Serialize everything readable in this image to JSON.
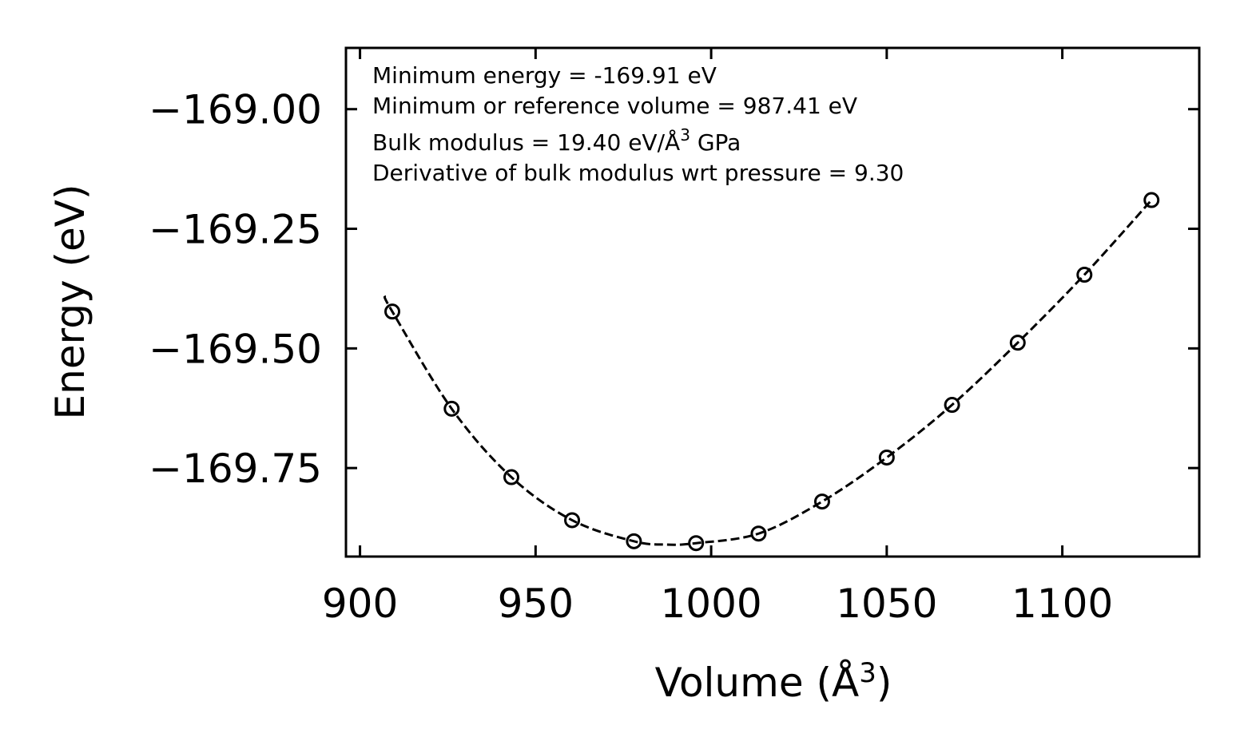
{
  "chart_data": {
    "type": "scatter",
    "xlabel": "Volume (Å",
    "xlabel_sup": "3",
    "xlabel_close": ")",
    "ylabel": "Energy (eV)",
    "xlim": [
      896,
      1139
    ],
    "ylim": [
      -169.935,
      -168.872
    ],
    "x_ticks": [
      900,
      950,
      1000,
      1050,
      1100
    ],
    "x_tick_labels": [
      "900",
      "950",
      "1000",
      "1050",
      "1100"
    ],
    "y_ticks": [
      -169.0,
      -169.25,
      -169.5,
      -169.75
    ],
    "y_tick_labels": [
      "−169.00",
      "−169.25",
      "−169.50",
      "−169.75"
    ],
    "annotations": {
      "line1": "Minimum energy = -169.91 eV",
      "line2": "Minimum or reference volume = 987.41 eV",
      "line3_pre": "Bulk modulus = 19.40 eV/Å",
      "line3_sup": "3",
      "line3_post": " GPa",
      "line4": "Derivative of bulk modulus wrt pressure = 9.30"
    },
    "series": [
      {
        "name": "data points",
        "marker": "open-circle",
        "x": [
          909.2,
          926.1,
          943.1,
          960.4,
          978.0,
          995.7,
          1013.5,
          1031.6,
          1050.0,
          1068.6,
          1087.3,
          1106.3,
          1125.4
        ],
        "y": [
          -169.423,
          -169.626,
          -169.769,
          -169.859,
          -169.903,
          -169.907,
          -169.887,
          -169.82,
          -169.728,
          -169.618,
          -169.488,
          -169.346,
          -169.19
        ]
      },
      {
        "name": "fit",
        "style": "dashed",
        "x": [
          907.0,
          909.2,
          926.1,
          943.1,
          960.4,
          978.0,
          987.41,
          995.7,
          1013.5,
          1031.6,
          1050.0,
          1068.6,
          1087.3,
          1106.3,
          1125.4
        ],
        "y": [
          -169.39,
          -169.423,
          -169.626,
          -169.769,
          -169.859,
          -169.903,
          -169.91,
          -169.907,
          -169.887,
          -169.82,
          -169.728,
          -169.618,
          -169.488,
          -169.346,
          -169.19
        ]
      }
    ]
  }
}
